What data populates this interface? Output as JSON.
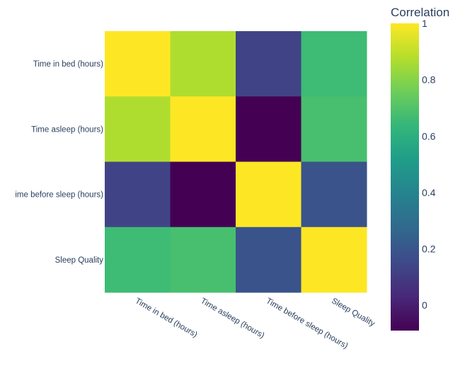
{
  "chart_data": {
    "type": "heatmap",
    "title": "",
    "xlabel": "",
    "ylabel": "",
    "x_categories": [
      "Time in bed (hours)",
      "Time asleep (hours)",
      "Time before sleep (hours)",
      "Sleep Quality"
    ],
    "y_categories": [
      "Time in bed (hours)",
      "Time asleep (hours)",
      "Time before sleep (hours)",
      "Sleep Quality"
    ],
    "y_tick_labels_display": [
      "Time in bed (hours)",
      "Time asleep (hours)",
      "ime before sleep (hours)",
      "Sleep Quality"
    ],
    "z": [
      [
        1.0,
        0.87,
        0.13,
        0.66
      ],
      [
        0.87,
        1.0,
        -0.09,
        0.68
      ],
      [
        0.13,
        -0.09,
        1.0,
        0.19
      ],
      [
        0.66,
        0.68,
        0.19,
        1.0
      ]
    ],
    "colorscale": "Viridis",
    "colorbar": {
      "title": "Correlation",
      "range": [
        -0.09,
        1.0
      ],
      "tick_values": [
        0,
        0.2,
        0.4,
        0.6,
        0.8,
        1
      ],
      "tick_labels": [
        "0",
        "0.2",
        "0.4",
        "0.6",
        "0.8",
        "1"
      ]
    }
  }
}
